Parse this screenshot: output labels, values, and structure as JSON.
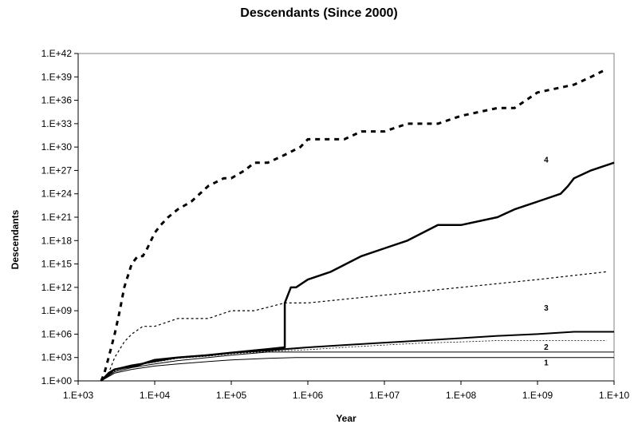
{
  "chart_data": {
    "type": "line",
    "title": "Descendants (Since 2000)",
    "xlabel": "Year",
    "ylabel": "Descendants",
    "x_scale": "log",
    "y_scale": "log",
    "xlim": [
      1000,
      10000000000
    ],
    "ylim": [
      1,
      1e+42
    ],
    "x_ticks": [
      1000,
      10000,
      100000,
      1000000,
      10000000,
      100000000,
      1000000000,
      10000000000
    ],
    "x_tick_labels": [
      "1.E+03",
      "1.E+04",
      "1.E+05",
      "1.E+06",
      "1.E+07",
      "1.E+08",
      "1.E+09",
      "1.E+10"
    ],
    "y_ticks": [
      1,
      1000.0,
      1000000.0,
      1000000000.0,
      1000000000000.0,
      1000000000000000.0,
      1e+18,
      1e+21,
      1e+24,
      1e+27,
      1e+30,
      1e+33,
      1e+36,
      1e+39,
      1e+42
    ],
    "y_tick_labels": [
      "1.E+00",
      "1.E+03",
      "1.E+06",
      "1.E+09",
      "1.E+12",
      "1.E+15",
      "1.E+18",
      "1.E+21",
      "1.E+24",
      "1.E+27",
      "1.E+30",
      "1.E+33",
      "1.E+36",
      "1.E+39",
      "1.E+42"
    ],
    "grid": false,
    "annotations": [
      {
        "text": "4",
        "x": 1300000000,
        "y": 1e+28
      },
      {
        "text": "3",
        "x": 1300000000,
        "y": 1000000000.0
      },
      {
        "text": "2",
        "x": 1300000000,
        "y": 10000.0
      },
      {
        "text": "1",
        "x": 1300000000,
        "y": 100.0
      }
    ],
    "series": [
      {
        "style": "dash-thick",
        "x": [
          2000,
          2200,
          2500,
          3000,
          3500,
          4000,
          5000,
          6000,
          7000,
          8000,
          10000,
          12000,
          15000,
          20000,
          30000,
          50000,
          80000,
          100000,
          150000,
          200000,
          300000,
          500000,
          800000,
          1000000,
          1500000,
          2000000,
          3000000,
          5000000,
          8000000,
          10000000,
          20000000,
          50000000,
          100000000,
          300000000,
          500000000,
          1000000000,
          3000000000,
          5000000000,
          8000000000
        ],
        "y": [
          1,
          10,
          1000.0,
          1000000.0,
          1000000000.0,
          1000000000000.0,
          1000000000000000.0,
          1e+16,
          1e+16,
          1e+17,
          1e+19,
          1e+20,
          1e+21,
          1e+22,
          1e+23,
          1e+25,
          1e+26,
          1e+26,
          1e+27,
          1e+28,
          1e+28,
          1e+29,
          1e+30,
          1e+31,
          1e+31,
          1e+31,
          1e+31,
          1e+32,
          1e+32,
          1e+32,
          1e+33,
          1e+33,
          1e+34,
          1e+35,
          1e+35,
          1e+37,
          1e+38,
          1e+39,
          1e+40
        ]
      },
      {
        "style": "solid-thick",
        "x": [
          2000,
          2500,
          3000,
          4000,
          6000,
          10000,
          20000,
          50000,
          100000,
          200000,
          300000,
          500000,
          500000,
          600000,
          700000,
          1000000,
          2000000,
          5000000,
          10000000,
          20000000,
          50000000,
          100000000,
          300000000,
          500000000,
          1000000000,
          2000000000,
          2500000000,
          3000000000,
          5000000000,
          10000000000
        ],
        "y": [
          1,
          10,
          30,
          50,
          100,
          500,
          1000,
          2000,
          4000,
          8000,
          12000,
          20000,
          10000000000.0,
          1000000000000.0,
          1000000000000.0,
          10000000000000.0,
          100000000000000.0,
          1e+16,
          1e+17,
          1e+18,
          1e+20,
          1e+20,
          1e+21,
          1e+22,
          1e+23,
          1e+24,
          1e+25,
          1e+26,
          1e+27,
          1e+28
        ]
      },
      {
        "style": "dash-thin",
        "x": [
          2000,
          2500,
          3000,
          4000,
          5000,
          7000,
          10000,
          20000,
          50000,
          100000,
          200000,
          500000,
          1000000,
          10000000,
          100000000,
          1000000000,
          8000000000
        ],
        "y": [
          1,
          10,
          1000.0,
          100000.0,
          1000000.0,
          10000000.0,
          10000000.0,
          100000000.0,
          100000000.0,
          1000000000.0,
          1000000000.0,
          10000000000.0,
          10000000000.0,
          100000000000.0,
          1000000000000.0,
          10000000000000.0,
          100000000000000.0
        ]
      },
      {
        "style": "solid-medium",
        "x": [
          2000,
          3000,
          5000,
          10000,
          20000,
          50000,
          100000,
          300000,
          1000000,
          3000000,
          10000000,
          30000000,
          100000000,
          300000000,
          1000000000,
          3000000000,
          10000000000
        ],
        "y": [
          1,
          30,
          100,
          300,
          1000,
          2000,
          4000,
          8000,
          20000,
          40000,
          80000,
          150000,
          300000,
          600000,
          1000000,
          2000000,
          2000000
        ]
      },
      {
        "style": "dot-thin",
        "x": [
          2000,
          3000,
          5000,
          10000,
          20000,
          50000,
          100000,
          300000,
          1000000,
          3000000,
          10000000,
          30000000,
          100000000,
          300000000,
          1000000000,
          3000000000,
          8000000000
        ],
        "y": [
          1,
          20,
          80,
          250,
          800,
          1500,
          3000,
          6000,
          10000,
          20000,
          40000,
          70000,
          100000,
          150000,
          150000,
          150000,
          150000
        ]
      },
      {
        "style": "solid-thin",
        "x": [
          2000,
          3000,
          5000,
          10000,
          20000,
          50000,
          100000,
          300000,
          700000,
          1000000,
          10000000,
          100000000,
          1000000000,
          10000000000
        ],
        "y": [
          1,
          15,
          50,
          150,
          400,
          1000,
          2000,
          5000,
          5000,
          5000,
          5000,
          5000,
          5000,
          5000
        ]
      },
      {
        "style": "solid-thin",
        "x": [
          2000,
          3000,
          5000,
          10000,
          20000,
          50000,
          100000,
          300000,
          700000,
          1000000,
          10000000,
          100000000,
          1000000000,
          10000000000
        ],
        "y": [
          1,
          10,
          30,
          80,
          150,
          300,
          500,
          800,
          1000,
          1000,
          1000,
          1000,
          1000,
          1000
        ]
      }
    ]
  }
}
